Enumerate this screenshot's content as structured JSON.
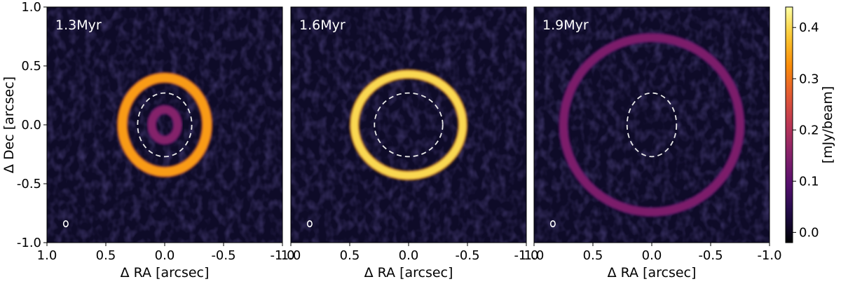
{
  "chart_data": {
    "type": "heatmap",
    "panels": [
      {
        "label": "1.3Myr",
        "rings": [
          {
            "radius_ra": 0.36,
            "radius_dec": 0.4,
            "width": 0.035,
            "intensity": 0.34
          },
          {
            "radius_ra": 0.11,
            "radius_dec": 0.13,
            "width": 0.03,
            "intensity": 0.15
          }
        ],
        "dashed_ellipse": {
          "radius_ra": 0.23,
          "radius_dec": 0.27
        }
      },
      {
        "label": "1.6Myr",
        "rings": [
          {
            "radius_ra": 0.46,
            "radius_dec": 0.43,
            "width": 0.03,
            "intensity": 0.4
          }
        ],
        "dashed_ellipse": {
          "radius_ra": 0.29,
          "radius_dec": 0.27
        }
      },
      {
        "label": "1.9Myr",
        "rings": [
          {
            "radius_ra": 0.75,
            "radius_dec": 0.74,
            "width": 0.03,
            "intensity": 0.14
          }
        ],
        "dashed_ellipse": {
          "radius_ra": 0.21,
          "radius_dec": 0.27
        }
      }
    ],
    "xlabel": "Δ RA [arcsec]",
    "ylabel": "Δ Dec [arcsec]",
    "xlim": [
      1.0,
      -1.0
    ],
    "ylim": [
      -1.0,
      1.0
    ],
    "xticks": [
      "1.0",
      "0.5",
      "0.0",
      "-0.5",
      "-1.0"
    ],
    "yticks": [
      "-1.0",
      "-0.5",
      "0.0",
      "0.5",
      "1.0"
    ],
    "colorbar": {
      "label": "[mJy/beam]",
      "range": [
        -0.02,
        0.44
      ],
      "ticks": [
        "0.0",
        "0.1",
        "0.2",
        "0.3",
        "0.4"
      ],
      "colormap": "inferno"
    },
    "background_color": "#0e0b28"
  }
}
